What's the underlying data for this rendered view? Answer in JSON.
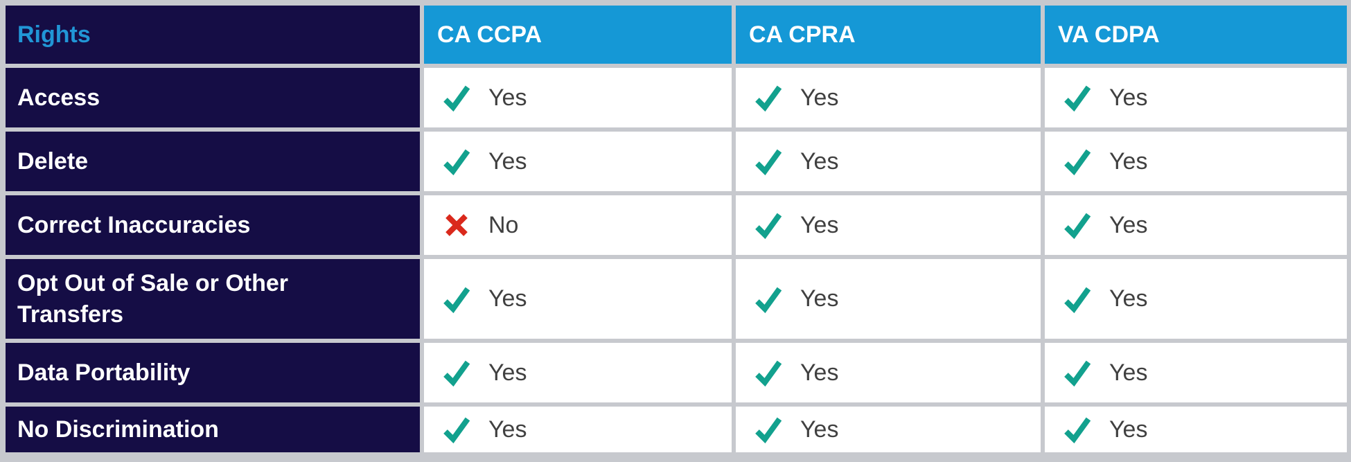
{
  "colors": {
    "row_label_navy": "#150d45",
    "column_header_blue": "#1598d6",
    "rights_text_blue": "#2196d6",
    "check_teal": "#12a18e",
    "cross_red": "#da291c",
    "grid_line_gray": "#c7c9ce",
    "value_text_gray": "#404040"
  },
  "table": {
    "corner_label": "Rights",
    "columns": [
      "CA CCPA",
      "CA CPRA",
      "VA CDPA"
    ],
    "rows": [
      {
        "label": "Access",
        "cells": [
          {
            "icon": "check",
            "value": "Yes"
          },
          {
            "icon": "check",
            "value": "Yes"
          },
          {
            "icon": "check",
            "value": "Yes"
          }
        ]
      },
      {
        "label": "Delete",
        "cells": [
          {
            "icon": "check",
            "value": "Yes"
          },
          {
            "icon": "check",
            "value": "Yes"
          },
          {
            "icon": "check",
            "value": "Yes"
          }
        ]
      },
      {
        "label": "Correct Inaccuracies",
        "cells": [
          {
            "icon": "cross",
            "value": "No"
          },
          {
            "icon": "check",
            "value": "Yes"
          },
          {
            "icon": "check",
            "value": "Yes"
          }
        ]
      },
      {
        "label": "Opt Out of Sale or Other Transfers",
        "cells": [
          {
            "icon": "check",
            "value": "Yes"
          },
          {
            "icon": "check",
            "value": "Yes"
          },
          {
            "icon": "check",
            "value": "Yes"
          }
        ]
      },
      {
        "label": "Data Portability",
        "cells": [
          {
            "icon": "check",
            "value": "Yes"
          },
          {
            "icon": "check",
            "value": "Yes"
          },
          {
            "icon": "check",
            "value": "Yes"
          }
        ]
      },
      {
        "label": "No Discrimination",
        "cells": [
          {
            "icon": "check",
            "value": "Yes"
          },
          {
            "icon": "check",
            "value": "Yes"
          },
          {
            "icon": "check",
            "value": "Yes"
          }
        ]
      }
    ]
  }
}
